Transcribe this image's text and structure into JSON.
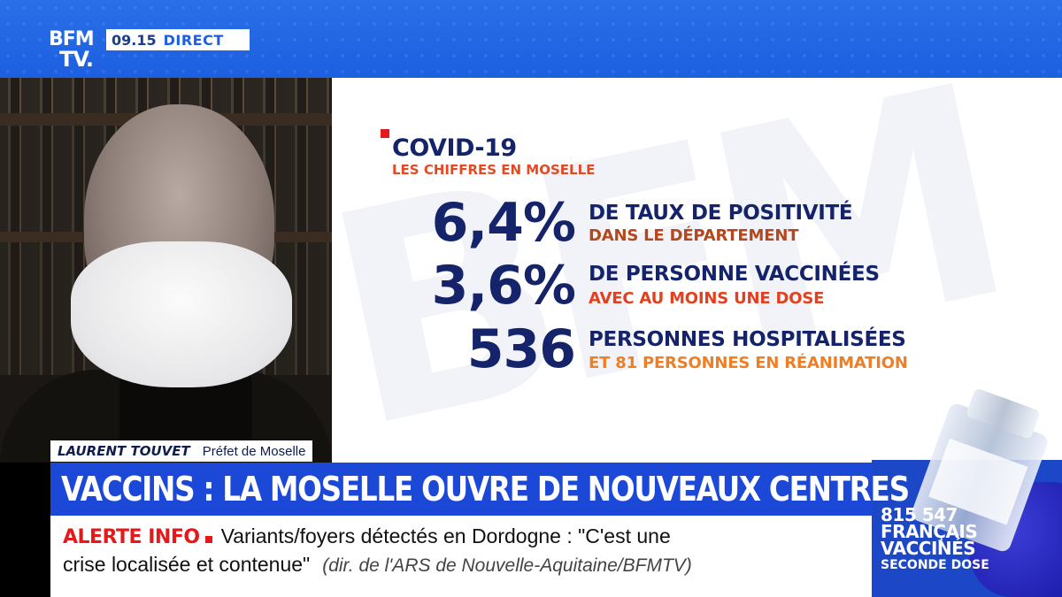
{
  "header": {
    "logo_line1": "BFM",
    "logo_line2": "TV.",
    "time": "09.15",
    "live_label": "DIRECT"
  },
  "panel": {
    "title": "COVID-19",
    "subtitle": "LES CHIFFRES EN MOSELLE",
    "watermark": "BFM",
    "stats": [
      {
        "value": "6,4%",
        "label": "DE TAUX DE POSITIVITÉ",
        "detail": "DANS LE DÉPARTEMENT",
        "detail_color": "#b5471c"
      },
      {
        "value": "3,6%",
        "label": "DE PERSONNE VACCINÉES",
        "detail": "AVEC AU MOINS UNE DOSE",
        "detail_color": "#e2401f"
      },
      {
        "value": "536",
        "label": "PERSONNES HOSPITALISÉES",
        "detail": "ET 81 PERSONNES EN RÉANIMATION",
        "detail_color": "#ee7f24"
      }
    ]
  },
  "speaker": {
    "name": "LAURENT TOUVET",
    "role": "Préfet de Moselle"
  },
  "headline": "VACCINS : LA MOSELLE OUVRE DE NOUVEAUX CENTRES",
  "ticker": {
    "alert_label": "ALERTE INFO",
    "text_line1": "Variants/foyers détectés en Dordogne : \"C'est une",
    "text_line2": "crise localisée et contenue\"",
    "source": "(dir. de l'ARS de Nouvelle-Aquitaine/BFMTV)"
  },
  "vaccine_counter": {
    "count": "815 547",
    "line2": "FRANÇAIS",
    "line3": "VACCINÉS",
    "line4": "SECONDE DOSE"
  }
}
